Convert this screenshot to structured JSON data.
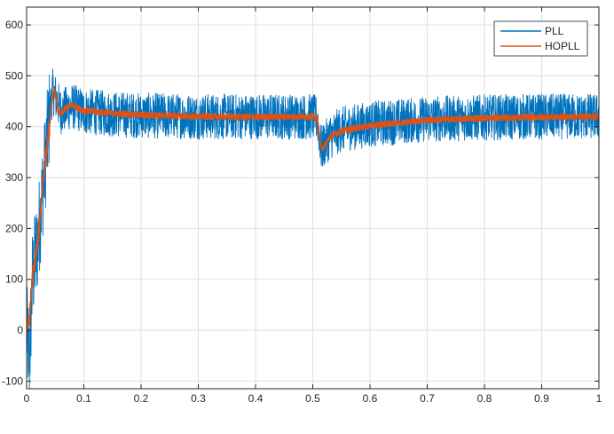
{
  "chart_data": {
    "type": "line",
    "title": "",
    "xlabel": "",
    "ylabel": "",
    "xlim": [
      0,
      1
    ],
    "ylim": [
      -115,
      635
    ],
    "xticks": [
      0,
      0.1,
      0.2,
      0.3,
      0.4,
      0.5,
      0.6,
      0.7,
      0.8,
      0.9,
      1
    ],
    "xtick_labels": [
      "0",
      "0.1",
      "0.2",
      "0.3",
      "0.4",
      "0.5",
      "0.6",
      "0.7",
      "0.8",
      "0.9",
      "1"
    ],
    "yticks": [
      -100,
      0,
      100,
      200,
      300,
      400,
      500,
      600
    ],
    "ytick_labels": [
      "-100",
      "0",
      "100",
      "200",
      "300",
      "400",
      "500",
      "600"
    ],
    "grid": true,
    "legend_position": "top-right",
    "series": [
      {
        "name": "PLL",
        "color": "#0072BD",
        "noise_amplitude": 45,
        "x": [
          0,
          0.005,
          0.01,
          0.02,
          0.03,
          0.04,
          0.045,
          0.05,
          0.06,
          0.08,
          0.1,
          0.15,
          0.2,
          0.3,
          0.4,
          0.5,
          0.508,
          0.515,
          0.52,
          0.53,
          0.55,
          0.6,
          0.65,
          0.7,
          0.8,
          0.9,
          1.0
        ],
        "y": [
          0,
          -60,
          100,
          180,
          300,
          420,
          470,
          460,
          430,
          440,
          430,
          425,
          422,
          420,
          420,
          420,
          415,
          355,
          365,
          380,
          395,
          405,
          410,
          415,
          418,
          420,
          420
        ]
      },
      {
        "name": "HOPLL",
        "color": "#D95319",
        "noise_amplitude": 6,
        "x": [
          0,
          0.005,
          0.01,
          0.02,
          0.03,
          0.04,
          0.045,
          0.048,
          0.052,
          0.055,
          0.06,
          0.07,
          0.08,
          0.1,
          0.15,
          0.2,
          0.3,
          0.4,
          0.5,
          0.508,
          0.515,
          0.52,
          0.53,
          0.55,
          0.6,
          0.65,
          0.7,
          0.8,
          0.9,
          1.0
        ],
        "y": [
          0,
          20,
          100,
          180,
          310,
          400,
          460,
          472,
          455,
          430,
          425,
          438,
          442,
          432,
          426,
          423,
          420,
          419,
          420,
          415,
          355,
          362,
          380,
          392,
          402,
          408,
          413,
          417,
          419,
          420
        ]
      }
    ]
  }
}
